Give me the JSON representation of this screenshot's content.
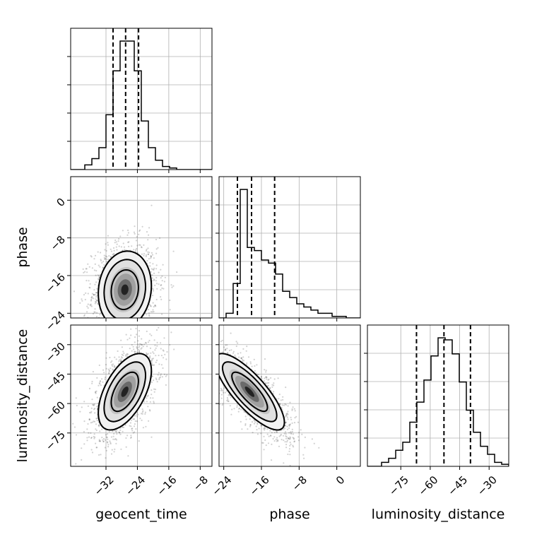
{
  "chart_data": {
    "type": "corner",
    "parameters": [
      "geocent_time",
      "phase",
      "luminosity_distance"
    ],
    "tick_labels": {
      "geocent_time": [
        "−32",
        "−24",
        "−16",
        "−8"
      ],
      "phase": [
        "−24",
        "−16",
        "−8",
        "0"
      ],
      "luminosity_distance": [
        "−75",
        "−60",
        "−45",
        "−30"
      ]
    },
    "ranges": {
      "geocent_time": [
        -41,
        -5
      ],
      "phase": [
        -25,
        5
      ],
      "luminosity_distance": [
        -92,
        -20
      ]
    },
    "ticks": {
      "geocent_time": [
        -32,
        -24,
        -16,
        -8
      ],
      "phase": [
        -24,
        -16,
        -8,
        0
      ],
      "luminosity_distance": [
        -75,
        -60,
        -45,
        -30
      ]
    },
    "quantiles": {
      "geocent_time": [
        -30.2,
        -27.0,
        -23.7
      ],
      "phase": [
        -21.1,
        -18.1,
        -13.2
      ],
      "luminosity_distance": [
        -67.0,
        -53.0,
        -39.5
      ]
    },
    "histograms": {
      "geocent_time": {
        "edges": [
          -41,
          -39.2,
          -37.4,
          -35.6,
          -33.8,
          -32,
          -30.2,
          -28.4,
          -26.6,
          -24.8,
          -23,
          -21.2,
          -19.4,
          -17.6,
          -15.8,
          -14,
          -12.2,
          -10.4,
          -8.6,
          -6.8,
          -5
        ],
        "counts": [
          0,
          0,
          3,
          7,
          14,
          35,
          63,
          82,
          82,
          63,
          31,
          14,
          6,
          2,
          1,
          0,
          0,
          0,
          0,
          0
        ]
      },
      "phase": {
        "edges": [
          -25,
          -23.5,
          -22,
          -20.5,
          -19,
          -17.5,
          -16,
          -14.5,
          -13,
          -11.5,
          -10,
          -8.5,
          -7,
          -5.5,
          -4,
          -2.5,
          -1,
          0.5,
          2,
          3.5,
          5
        ],
        "counts": [
          0,
          3,
          22,
          82,
          45,
          43,
          37,
          35,
          28,
          17,
          13,
          9,
          7,
          5,
          3,
          3,
          1,
          1,
          0,
          0
        ]
      },
      "luminosity_distance": {
        "edges": [
          -92,
          -88.4,
          -84.8,
          -81.2,
          -77.6,
          -74,
          -70.4,
          -66.8,
          -63.2,
          -59.6,
          -56,
          -52.4,
          -48.8,
          -45.2,
          -41.6,
          -38,
          -34.4,
          -30.8,
          -27.2,
          -23.6,
          -20
        ],
        "counts": [
          0,
          0,
          2,
          4,
          8,
          12,
          22,
          32,
          43,
          55,
          64,
          63,
          56,
          42,
          28,
          17,
          10,
          6,
          2,
          1
        ]
      }
    },
    "pairs": [
      {
        "x": "geocent_time",
        "y": "phase",
        "mean": [
          -27.2,
          -19.0
        ],
        "sd": [
          3.3,
          4.0
        ],
        "rho": 0.1
      },
      {
        "x": "geocent_time",
        "y": "luminosity_distance",
        "mean": [
          -27.2,
          -54.0
        ],
        "sd": [
          3.3,
          9.5
        ],
        "rho": 0.55
      },
      {
        "x": "phase",
        "y": "luminosity_distance",
        "mean": [
          -18.5,
          -54.0
        ],
        "sd": [
          3.6,
          9.5
        ],
        "rho": -0.8
      }
    ]
  }
}
